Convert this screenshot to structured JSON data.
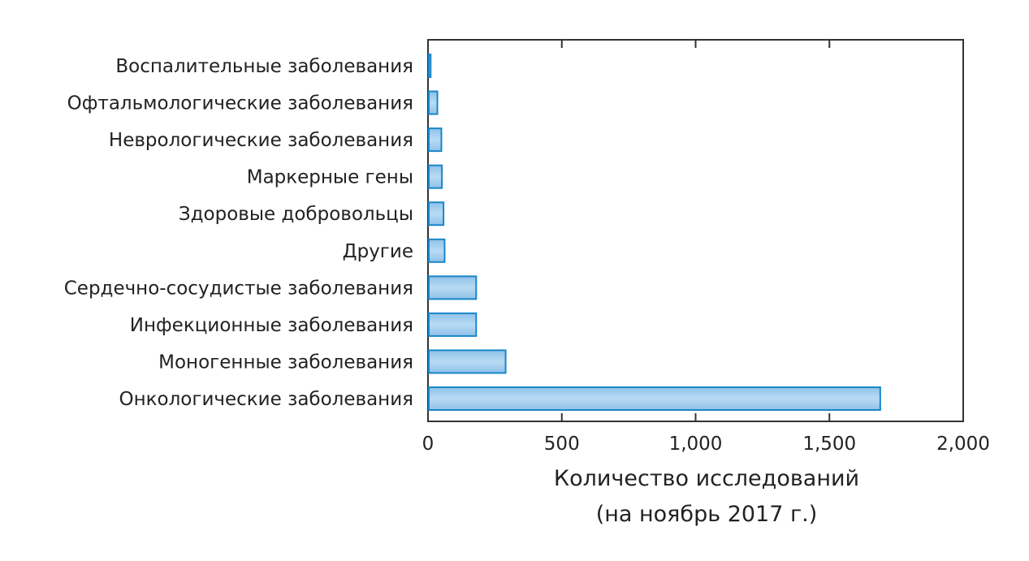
{
  "chart_data": {
    "type": "bar",
    "orientation": "horizontal",
    "categories": [
      "Воспалительные заболевания",
      "Офтальмологические заболевания",
      "Неврологические заболевания",
      "Маркерные гены",
      "Здоровые добровольцы",
      "Другие",
      "Сердечно-сосудистые заболевания",
      "Инфекционные заболевания",
      "Моногенные заболевания",
      "Онкологические заболевания"
    ],
    "values": [
      10,
      35,
      50,
      52,
      58,
      62,
      180,
      180,
      290,
      1690
    ],
    "xlabel": [
      "Количество исследований",
      "(на ноябрь 2017 г.)"
    ],
    "ylabel": "",
    "title": "",
    "xlim": [
      0,
      2000
    ],
    "xticks": [
      0,
      500,
      1000,
      1500,
      2000
    ],
    "xtick_labels": [
      "0",
      "500",
      "1,000",
      "1,500",
      "2,000"
    ],
    "grid": false,
    "legend": "none",
    "colors": {
      "bar_fill": "#a6cdeb",
      "bar_stroke": "#1a86c8",
      "axis": "#333333",
      "text": "#222222"
    }
  }
}
